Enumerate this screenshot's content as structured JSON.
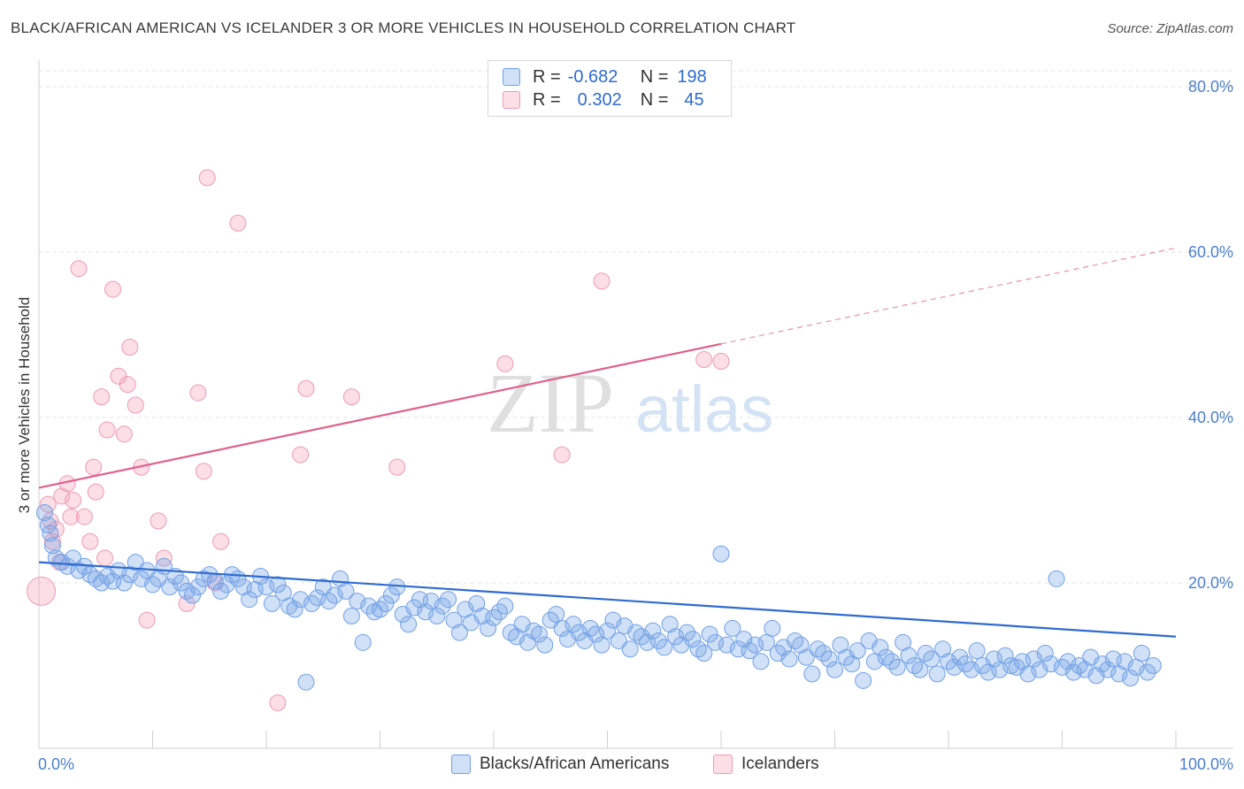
{
  "title": "BLACK/AFRICAN AMERICAN VS ICELANDER 3 OR MORE VEHICLES IN HOUSEHOLD CORRELATION CHART",
  "source": "Source: ZipAtlas.com",
  "watermark": {
    "zip": "ZIP",
    "atlas": "atlas"
  },
  "legend": {
    "rows": [
      {
        "r_label": "R =",
        "r_value": "-0.682",
        "n_label": "N =",
        "n_value": "198",
        "color": "#6fa0e8"
      },
      {
        "r_label": "R =",
        "r_value": "0.302",
        "n_label": "N =",
        "n_value": "45",
        "color": "#f08caa"
      }
    ]
  },
  "bottom_legend": [
    {
      "label": "Blacks/African Americans",
      "color": "#6fa0e8"
    },
    {
      "label": "Icelanders",
      "color": "#f08caa"
    }
  ],
  "colors": {
    "blue_fill": "rgba(120,165,230,0.35)",
    "blue_stroke": "#6fa0e8",
    "blue_line": "#2e6bd1",
    "pink_fill": "rgba(245,160,185,0.35)",
    "pink_stroke": "#ee9ab4",
    "pink_line": "#e0608c",
    "tick_text": "#4a7fd0"
  },
  "chart_data": {
    "type": "scatter",
    "title": "BLACK/AFRICAN AMERICAN VS ICELANDER 3 OR MORE VEHICLES IN HOUSEHOLD CORRELATION CHART",
    "xlabel": "",
    "ylabel": "3 or more Vehicles in Household",
    "xlim": [
      0,
      100
    ],
    "ylim": [
      0,
      80
    ],
    "x_tick_labels": [
      "0.0%",
      "100.0%"
    ],
    "y_ticks": [
      20,
      40,
      60,
      80
    ],
    "y_tick_labels": [
      "20.0%",
      "40.0%",
      "60.0%",
      "80.0%"
    ],
    "grid": true,
    "legend_position": "top-center",
    "series": [
      {
        "name": "Blacks/African Americans",
        "color": "#6fa0e8",
        "trend": {
          "x": [
            0,
            100
          ],
          "y": [
            22.5,
            13.5
          ],
          "dashed_from": null
        },
        "points": [
          [
            0.5,
            28.5
          ],
          [
            0.8,
            27.0
          ],
          [
            1.0,
            26.0
          ],
          [
            1.2,
            24.5
          ],
          [
            1.5,
            23.0
          ],
          [
            2.0,
            22.5
          ],
          [
            2.5,
            22.0
          ],
          [
            3.0,
            23.0
          ],
          [
            3.5,
            21.5
          ],
          [
            4.0,
            22.0
          ],
          [
            4.5,
            21.0
          ],
          [
            5.0,
            20.5
          ],
          [
            5.5,
            20.0
          ],
          [
            6.0,
            20.8
          ],
          [
            6.5,
            20.2
          ],
          [
            7.0,
            21.5
          ],
          [
            7.5,
            20.0
          ],
          [
            8.0,
            21.0
          ],
          [
            8.5,
            22.5
          ],
          [
            9.0,
            20.5
          ],
          [
            9.5,
            21.5
          ],
          [
            10.0,
            19.8
          ],
          [
            10.5,
            20.5
          ],
          [
            11.0,
            22.0
          ],
          [
            11.5,
            19.5
          ],
          [
            12.0,
            20.8
          ],
          [
            12.5,
            20.0
          ],
          [
            13.0,
            19.0
          ],
          [
            13.5,
            18.5
          ],
          [
            14.0,
            19.5
          ],
          [
            14.5,
            20.5
          ],
          [
            15.0,
            21.0
          ],
          [
            15.5,
            20.2
          ],
          [
            16.0,
            19.0
          ],
          [
            16.5,
            19.8
          ],
          [
            17.0,
            21.0
          ],
          [
            17.5,
            20.5
          ],
          [
            18.0,
            19.5
          ],
          [
            18.5,
            18.0
          ],
          [
            19.0,
            19.2
          ],
          [
            19.5,
            20.8
          ],
          [
            20.0,
            19.5
          ],
          [
            20.5,
            17.5
          ],
          [
            21.0,
            19.8
          ],
          [
            21.5,
            18.8
          ],
          [
            22.0,
            17.2
          ],
          [
            22.5,
            16.8
          ],
          [
            23.0,
            18.0
          ],
          [
            23.5,
            8.0
          ],
          [
            24.0,
            17.5
          ],
          [
            24.5,
            18.2
          ],
          [
            25.0,
            19.5
          ],
          [
            25.5,
            17.8
          ],
          [
            26.0,
            18.5
          ],
          [
            26.5,
            20.5
          ],
          [
            27.0,
            19.0
          ],
          [
            27.5,
            16.0
          ],
          [
            28.0,
            17.8
          ],
          [
            28.5,
            12.8
          ],
          [
            29.0,
            17.2
          ],
          [
            29.5,
            16.5
          ],
          [
            30.0,
            16.8
          ],
          [
            30.5,
            17.5
          ],
          [
            31.0,
            18.5
          ],
          [
            31.5,
            19.5
          ],
          [
            32.0,
            16.2
          ],
          [
            32.5,
            15.0
          ],
          [
            33.0,
            17.0
          ],
          [
            33.5,
            18.0
          ],
          [
            34.0,
            16.5
          ],
          [
            34.5,
            17.8
          ],
          [
            35.0,
            16.0
          ],
          [
            35.5,
            17.2
          ],
          [
            36.0,
            18.0
          ],
          [
            36.5,
            15.5
          ],
          [
            37.0,
            14.0
          ],
          [
            37.5,
            16.8
          ],
          [
            38.0,
            15.2
          ],
          [
            38.5,
            17.5
          ],
          [
            39.0,
            16.0
          ],
          [
            39.5,
            14.5
          ],
          [
            40.0,
            15.8
          ],
          [
            40.5,
            16.5
          ],
          [
            41.0,
            17.2
          ],
          [
            41.5,
            14.0
          ],
          [
            42.0,
            13.5
          ],
          [
            42.5,
            15.0
          ],
          [
            43.0,
            12.8
          ],
          [
            43.5,
            14.2
          ],
          [
            44.0,
            13.8
          ],
          [
            44.5,
            12.5
          ],
          [
            45.0,
            15.5
          ],
          [
            45.5,
            16.2
          ],
          [
            46.0,
            14.5
          ],
          [
            46.5,
            13.2
          ],
          [
            47.0,
            15.0
          ],
          [
            47.5,
            14.0
          ],
          [
            48.0,
            13.0
          ],
          [
            48.5,
            14.5
          ],
          [
            49.0,
            13.8
          ],
          [
            49.5,
            12.5
          ],
          [
            50.0,
            14.2
          ],
          [
            50.5,
            15.5
          ],
          [
            51.0,
            13.0
          ],
          [
            51.5,
            14.8
          ],
          [
            52.0,
            12.0
          ],
          [
            52.5,
            14.0
          ],
          [
            53.0,
            13.5
          ],
          [
            53.5,
            12.8
          ],
          [
            54.0,
            14.2
          ],
          [
            54.5,
            13.0
          ],
          [
            55.0,
            12.2
          ],
          [
            55.5,
            15.0
          ],
          [
            56.0,
            13.5
          ],
          [
            56.5,
            12.5
          ],
          [
            57.0,
            14.0
          ],
          [
            57.5,
            13.2
          ],
          [
            58.0,
            12.0
          ],
          [
            58.5,
            11.5
          ],
          [
            59.0,
            13.8
          ],
          [
            59.5,
            12.8
          ],
          [
            60.0,
            23.5
          ],
          [
            60.5,
            12.5
          ],
          [
            61.0,
            14.5
          ],
          [
            61.5,
            12.0
          ],
          [
            62.0,
            13.2
          ],
          [
            62.5,
            11.8
          ],
          [
            63.0,
            12.5
          ],
          [
            63.5,
            10.5
          ],
          [
            64.0,
            12.8
          ],
          [
            64.5,
            14.5
          ],
          [
            65.0,
            11.5
          ],
          [
            65.5,
            12.2
          ],
          [
            66.0,
            10.8
          ],
          [
            66.5,
            13.0
          ],
          [
            67.0,
            12.5
          ],
          [
            67.5,
            11.0
          ],
          [
            68.0,
            9.0
          ],
          [
            68.5,
            12.0
          ],
          [
            69.0,
            11.5
          ],
          [
            69.5,
            10.8
          ],
          [
            70.0,
            9.5
          ],
          [
            70.5,
            12.5
          ],
          [
            71.0,
            11.0
          ],
          [
            71.5,
            10.2
          ],
          [
            72.0,
            11.8
          ],
          [
            72.5,
            8.2
          ],
          [
            73.0,
            13.0
          ],
          [
            73.5,
            10.5
          ],
          [
            74.0,
            12.2
          ],
          [
            74.5,
            11.0
          ],
          [
            75.0,
            10.5
          ],
          [
            75.5,
            9.8
          ],
          [
            76.0,
            12.8
          ],
          [
            76.5,
            11.2
          ],
          [
            77.0,
            10.0
          ],
          [
            77.5,
            9.5
          ],
          [
            78.0,
            11.5
          ],
          [
            78.5,
            10.8
          ],
          [
            79.0,
            9.0
          ],
          [
            79.5,
            12.0
          ],
          [
            80.0,
            10.5
          ],
          [
            80.5,
            9.8
          ],
          [
            81.0,
            11.0
          ],
          [
            81.5,
            10.2
          ],
          [
            82.0,
            9.5
          ],
          [
            82.5,
            11.8
          ],
          [
            83.0,
            10.0
          ],
          [
            83.5,
            9.2
          ],
          [
            84.0,
            10.8
          ],
          [
            84.5,
            9.5
          ],
          [
            85.0,
            11.2
          ],
          [
            85.5,
            10.0
          ],
          [
            86.0,
            9.8
          ],
          [
            86.5,
            10.5
          ],
          [
            87.0,
            9.0
          ],
          [
            87.5,
            10.8
          ],
          [
            88.0,
            9.5
          ],
          [
            88.5,
            11.5
          ],
          [
            89.0,
            10.2
          ],
          [
            89.5,
            20.5
          ],
          [
            90.0,
            9.8
          ],
          [
            90.5,
            10.5
          ],
          [
            91.0,
            9.2
          ],
          [
            91.5,
            10.0
          ],
          [
            92.0,
            9.5
          ],
          [
            92.5,
            11.0
          ],
          [
            93.0,
            8.8
          ],
          [
            93.5,
            10.2
          ],
          [
            94.0,
            9.5
          ],
          [
            94.5,
            10.8
          ],
          [
            95.0,
            9.0
          ],
          [
            95.5,
            10.5
          ],
          [
            96.0,
            8.5
          ],
          [
            96.5,
            9.8
          ],
          [
            97.0,
            11.5
          ],
          [
            97.5,
            9.2
          ],
          [
            98.0,
            10.0
          ]
        ]
      },
      {
        "name": "Icelanders",
        "color": "#f08caa",
        "trend": {
          "x": [
            0,
            100
          ],
          "y": [
            31.5,
            60.5
          ],
          "dashed_from": 60
        },
        "points": [
          [
            0.2,
            19.0
          ],
          [
            0.8,
            29.5
          ],
          [
            1.0,
            27.5
          ],
          [
            1.2,
            25.0
          ],
          [
            1.5,
            26.5
          ],
          [
            1.8,
            22.5
          ],
          [
            2.0,
            30.5
          ],
          [
            2.5,
            32.0
          ],
          [
            2.8,
            28.0
          ],
          [
            3.0,
            30.0
          ],
          [
            3.5,
            58.0
          ],
          [
            4.0,
            28.0
          ],
          [
            4.5,
            25.0
          ],
          [
            4.8,
            34.0
          ],
          [
            5.0,
            31.0
          ],
          [
            5.5,
            42.5
          ],
          [
            5.8,
            23.0
          ],
          [
            6.0,
            38.5
          ],
          [
            6.5,
            55.5
          ],
          [
            7.0,
            45.0
          ],
          [
            7.5,
            38.0
          ],
          [
            7.8,
            44.0
          ],
          [
            8.0,
            48.5
          ],
          [
            8.5,
            41.5
          ],
          [
            9.0,
            34.0
          ],
          [
            9.5,
            15.5
          ],
          [
            10.5,
            27.5
          ],
          [
            11.0,
            23.0
          ],
          [
            13.0,
            17.5
          ],
          [
            14.0,
            43.0
          ],
          [
            14.5,
            33.5
          ],
          [
            14.8,
            69.0
          ],
          [
            15.5,
            20.0
          ],
          [
            16.0,
            25.0
          ],
          [
            17.5,
            63.5
          ],
          [
            21.0,
            5.5
          ],
          [
            23.0,
            35.5
          ],
          [
            23.5,
            43.5
          ],
          [
            27.5,
            42.5
          ],
          [
            31.5,
            34.0
          ],
          [
            41.0,
            46.5
          ],
          [
            46.0,
            35.5
          ],
          [
            49.5,
            56.5
          ],
          [
            58.5,
            47.0
          ],
          [
            60.0,
            46.8
          ]
        ]
      }
    ]
  }
}
